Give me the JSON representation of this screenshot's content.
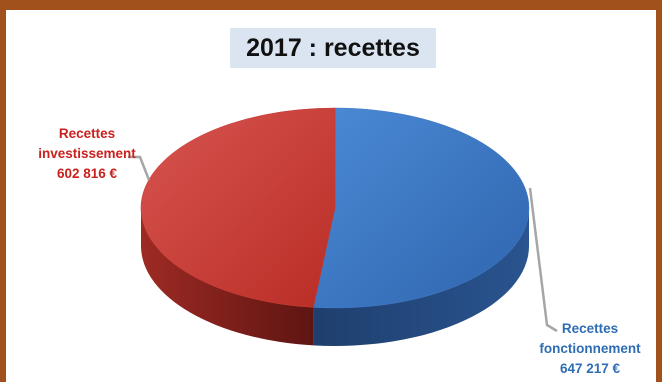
{
  "chart_data": {
    "type": "pie",
    "title": "2017 : recettes",
    "slices": [
      {
        "lines": [
          "Recettes",
          "investissement",
          "602 816 €"
        ],
        "category": "Recettes investissement",
        "value": 602816,
        "value_label": "602 816 €",
        "color": "#c7362f"
      },
      {
        "lines": [
          "Recettes",
          "fonctionnement",
          "647 217 €"
        ],
        "category": "Recettes fonctionnement",
        "value": 647217,
        "value_label": "647 217 €",
        "color": "#3a76c5"
      }
    ],
    "style": "3d"
  },
  "colors": {
    "frame": "#a0521a",
    "title_background": "#dbe5f1"
  }
}
